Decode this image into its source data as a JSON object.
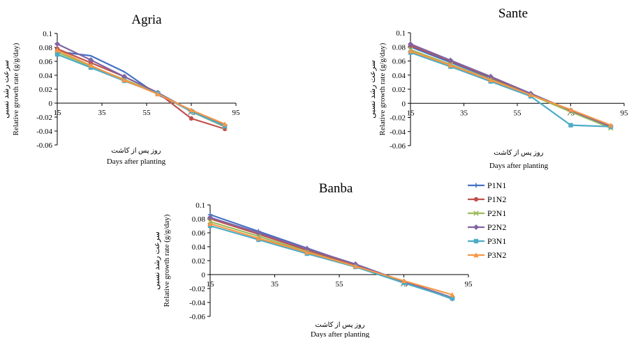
{
  "chart_data": [
    {
      "type": "line",
      "title": "Agria",
      "ylabel": "Relative growth rate (g/g/day)",
      "ylabel_fa": "سرعت رشد نسبی",
      "xlabel": "Days after planting",
      "xlabel_fa": "روز پس از کاشت",
      "xlim": [
        15,
        95
      ],
      "ylim": [
        -0.06,
        0.1
      ],
      "x_ticks": [
        "15",
        "35",
        "55",
        "75",
        "95"
      ],
      "y_ticks": [
        "0.1",
        "0.08",
        "0.06",
        "0.04",
        "0.02",
        "0",
        "-0.02",
        "-0.04",
        "-0.06"
      ],
      "x": [
        15,
        30,
        45,
        60,
        75,
        90
      ],
      "series": [
        {
          "name": "P1N1",
          "values": [
            0.074,
            0.068,
            0.045,
            0.012,
            -0.01,
            -0.032
          ]
        },
        {
          "name": "P1N2",
          "values": [
            0.078,
            0.058,
            0.038,
            0.015,
            -0.022,
            -0.037
          ]
        },
        {
          "name": "P2N1",
          "values": [
            0.073,
            0.053,
            0.034,
            0.014,
            -0.012,
            -0.034
          ]
        },
        {
          "name": "P2N2",
          "values": [
            0.085,
            0.062,
            0.038,
            0.015,
            -0.011,
            -0.032
          ]
        },
        {
          "name": "P3N1",
          "values": [
            0.07,
            0.051,
            0.032,
            0.014,
            -0.012,
            -0.033
          ]
        },
        {
          "name": "P3N2",
          "values": [
            0.076,
            0.054,
            0.033,
            0.013,
            -0.01,
            -0.03
          ]
        }
      ]
    },
    {
      "type": "line",
      "title": "Sante",
      "ylabel": "Relative growth rate (g/g/day)",
      "ylabel_fa": "سرعت رشد نسبی",
      "xlabel": "Days after planting",
      "xlabel_fa": "روز پس از کاشت",
      "xlim": [
        15,
        95
      ],
      "ylim": [
        -0.06,
        0.1
      ],
      "x_ticks": [
        "15",
        "35",
        "55",
        "75",
        "95"
      ],
      "y_ticks": [
        "0.1",
        "0.08",
        "0.06",
        "0.04",
        "0.02",
        "0",
        "-0.02",
        "-0.04",
        "-0.06"
      ],
      "x": [
        15,
        30,
        45,
        60,
        75,
        90
      ],
      "series": [
        {
          "name": "P1N1",
          "values": [
            0.08,
            0.058,
            0.036,
            0.013,
            -0.011,
            -0.033
          ]
        },
        {
          "name": "P1N2",
          "values": [
            0.082,
            0.06,
            0.037,
            0.013,
            -0.01,
            -0.033
          ]
        },
        {
          "name": "P2N1",
          "values": [
            0.076,
            0.055,
            0.034,
            0.012,
            -0.012,
            -0.035
          ]
        },
        {
          "name": "P2N2",
          "values": [
            0.084,
            0.061,
            0.038,
            0.014,
            -0.01,
            -0.033
          ]
        },
        {
          "name": "P3N1",
          "values": [
            0.072,
            0.052,
            0.031,
            0.01,
            -0.031,
            -0.033
          ]
        },
        {
          "name": "P3N2",
          "values": [
            0.074,
            0.054,
            0.033,
            0.012,
            -0.009,
            -0.031
          ]
        }
      ]
    },
    {
      "type": "line",
      "title": "Banba",
      "ylabel": "Relative growth rate (g/g/day)",
      "ylabel_fa": "سرعت رشد نسبی",
      "xlabel": "Days after planting",
      "xlabel_fa": "روز پس از کاشت",
      "xlim": [
        15,
        95
      ],
      "ylim": [
        -0.06,
        0.1
      ],
      "x_ticks": [
        "15",
        "35",
        "55",
        "75",
        "95"
      ],
      "y_ticks": [
        "0.1",
        "0.08",
        "0.06",
        "0.04",
        "0.02",
        "0",
        "-0.02",
        "-0.04",
        "-0.06"
      ],
      "x": [
        15,
        30,
        45,
        60,
        75,
        90
      ],
      "series": [
        {
          "name": "P1N1",
          "values": [
            0.086,
            0.062,
            0.038,
            0.014,
            -0.01,
            -0.035
          ]
        },
        {
          "name": "P1N2",
          "values": [
            0.08,
            0.058,
            0.035,
            0.013,
            -0.011,
            -0.034
          ]
        },
        {
          "name": "P2N1",
          "values": [
            0.076,
            0.055,
            0.033,
            0.012,
            -0.012,
            -0.034
          ]
        },
        {
          "name": "P2N2",
          "values": [
            0.082,
            0.06,
            0.037,
            0.015,
            -0.01,
            -0.033
          ]
        },
        {
          "name": "P3N1",
          "values": [
            0.07,
            0.05,
            0.03,
            0.011,
            -0.012,
            -0.034
          ]
        },
        {
          "name": "P3N2",
          "values": [
            0.073,
            0.052,
            0.032,
            0.012,
            -0.009,
            -0.029
          ]
        }
      ]
    }
  ],
  "legend": {
    "placement": "right of bottom chart",
    "items": [
      {
        "name": "P1N1",
        "color": "#4472C4",
        "marker": "plus"
      },
      {
        "name": "P1N2",
        "color": "#C0504D",
        "marker": "circle"
      },
      {
        "name": "P2N1",
        "color": "#9BBB59",
        "marker": "x"
      },
      {
        "name": "P2N2",
        "color": "#8064A2",
        "marker": "diamond"
      },
      {
        "name": "P3N1",
        "color": "#4BACC6",
        "marker": "square"
      },
      {
        "name": "P3N2",
        "color": "#F79646",
        "marker": "triangle"
      }
    ]
  }
}
